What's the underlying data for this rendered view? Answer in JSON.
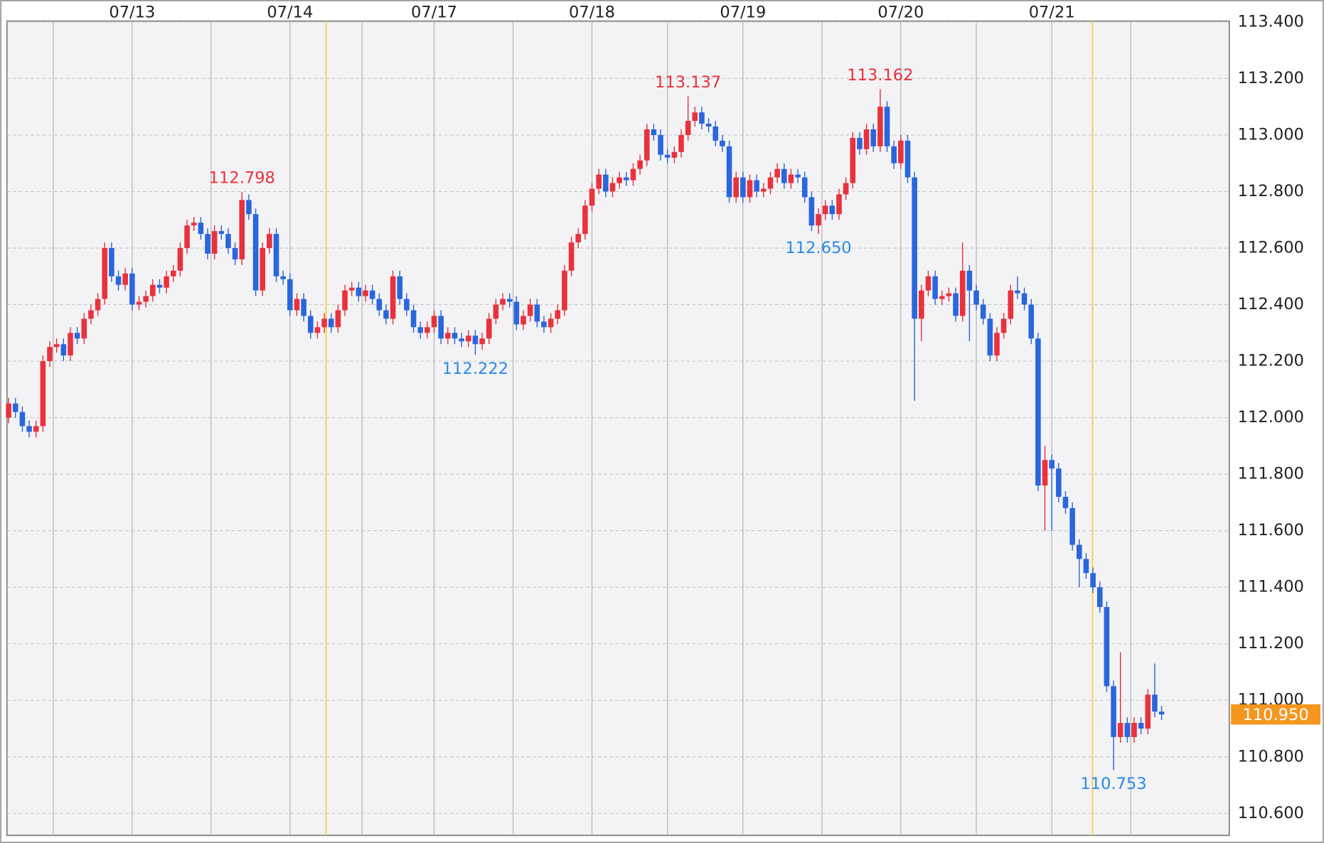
{
  "chart_data": {
    "type": "candlestick",
    "up_color": "#e8323c",
    "down_color": "#2a66dc",
    "grid": true,
    "ylim": [
      110.522,
      113.403
    ],
    "yticks": [
      {
        "value": 110.6,
        "label": "110.600"
      },
      {
        "value": 110.8,
        "label": "110.800"
      },
      {
        "value": 111.0,
        "label": "111.000"
      },
      {
        "value": 111.2,
        "label": "111.200"
      },
      {
        "value": 111.4,
        "label": "111.400"
      },
      {
        "value": 111.6,
        "label": "111.600"
      },
      {
        "value": 111.8,
        "label": "111.800"
      },
      {
        "value": 112.0,
        "label": "112.000"
      },
      {
        "value": 112.2,
        "label": "112.200"
      },
      {
        "value": 112.4,
        "label": "112.400"
      },
      {
        "value": 112.6,
        "label": "112.600"
      },
      {
        "value": 112.8,
        "label": "112.800"
      },
      {
        "value": 113.0,
        "label": "113.000"
      },
      {
        "value": 113.2,
        "label": "113.200"
      },
      {
        "value": 113.4,
        "label": "113.400"
      }
    ],
    "categories": [
      null,
      null,
      null,
      null,
      null,
      null,
      null,
      null,
      null,
      null,
      null,
      null,
      null,
      null,
      null,
      null,
      null,
      null,
      "07/13",
      null,
      null,
      null,
      null,
      null,
      null,
      null,
      null,
      null,
      null,
      null,
      null,
      null,
      null,
      null,
      null,
      null,
      null,
      null,
      null,
      null,
      null,
      "07/14",
      null,
      null,
      null,
      null,
      null,
      null,
      null,
      null,
      null,
      null,
      null,
      null,
      null,
      null,
      null,
      null,
      null,
      null,
      null,
      null,
      "07/17",
      null,
      null,
      null,
      null,
      null,
      null,
      null,
      null,
      null,
      null,
      null,
      null,
      null,
      null,
      null,
      null,
      null,
      null,
      null,
      null,
      null,
      null,
      "07/18",
      null,
      null,
      null,
      null,
      null,
      null,
      null,
      null,
      null,
      null,
      null,
      null,
      null,
      null,
      null,
      null,
      null,
      null,
      null,
      null,
      null,
      "07/19",
      null,
      null,
      null,
      null,
      null,
      null,
      null,
      null,
      null,
      null,
      null,
      null,
      null,
      null,
      null,
      null,
      null,
      null,
      null,
      null,
      null,
      null,
      "07/20",
      null,
      null,
      null,
      null,
      null,
      null,
      null,
      null,
      null,
      null,
      null,
      null,
      null,
      null,
      null,
      null,
      null,
      null,
      null,
      null,
      null,
      "07/21",
      null,
      null,
      null,
      null,
      null,
      null,
      null,
      null,
      null,
      null,
      null,
      null,
      null,
      null,
      null,
      null
    ],
    "open": [
      112.0,
      112.05,
      112.02,
      111.97,
      111.95,
      111.97,
      112.2,
      112.25,
      112.26,
      112.22,
      112.3,
      112.28,
      112.35,
      112.38,
      112.42,
      112.6,
      112.5,
      112.47,
      112.51,
      112.4,
      112.41,
      112.43,
      112.47,
      112.46,
      112.5,
      112.52,
      112.6,
      112.68,
      112.69,
      112.65,
      112.58,
      112.66,
      112.65,
      112.6,
      112.56,
      112.77,
      112.72,
      112.45,
      112.6,
      112.65,
      112.5,
      112.49,
      112.38,
      112.42,
      112.36,
      112.3,
      112.32,
      112.35,
      112.32,
      112.38,
      112.45,
      112.46,
      112.43,
      112.45,
      112.42,
      112.38,
      112.35,
      112.5,
      112.42,
      112.38,
      112.32,
      112.3,
      112.32,
      112.36,
      112.28,
      112.3,
      112.28,
      112.27,
      112.29,
      112.26,
      112.28,
      112.35,
      112.4,
      112.42,
      112.41,
      112.33,
      112.36,
      112.4,
      112.34,
      112.32,
      112.35,
      112.38,
      112.52,
      112.62,
      112.65,
      112.75,
      112.81,
      112.86,
      112.8,
      112.83,
      112.85,
      112.84,
      112.88,
      112.91,
      113.02,
      113.0,
      112.93,
      112.92,
      112.94,
      113.0,
      113.05,
      113.08,
      113.04,
      113.03,
      112.98,
      112.96,
      112.78,
      112.85,
      112.78,
      112.84,
      112.8,
      112.81,
      112.85,
      112.88,
      112.83,
      112.86,
      112.85,
      112.78,
      112.68,
      112.72,
      112.75,
      112.72,
      112.79,
      112.83,
      112.99,
      112.95,
      113.02,
      112.96,
      113.1,
      112.96,
      112.9,
      112.98,
      112.85,
      112.35,
      112.45,
      112.5,
      112.42,
      112.43,
      112.44,
      112.36,
      112.52,
      112.45,
      112.4,
      112.35,
      112.22,
      112.3,
      112.35,
      112.45,
      112.44,
      112.4,
      112.28,
      111.76,
      111.85,
      111.82,
      111.72,
      111.68,
      111.55,
      111.5,
      111.45,
      111.4,
      111.33,
      111.05,
      110.87,
      110.92,
      110.87,
      110.92,
      110.9,
      111.02,
      110.96
    ],
    "high": [
      112.07,
      112.07,
      112.04,
      111.99,
      111.99,
      112.22,
      112.27,
      112.28,
      112.28,
      112.32,
      112.32,
      112.37,
      112.4,
      112.44,
      112.62,
      112.62,
      112.52,
      112.53,
      112.53,
      112.43,
      112.45,
      112.49,
      112.49,
      112.52,
      112.54,
      112.62,
      112.7,
      112.71,
      112.71,
      112.67,
      112.68,
      112.68,
      112.67,
      112.62,
      112.798,
      112.79,
      112.74,
      112.62,
      112.67,
      112.67,
      112.52,
      112.51,
      112.44,
      112.44,
      112.38,
      112.34,
      112.37,
      112.37,
      112.4,
      112.47,
      112.48,
      112.48,
      112.47,
      112.47,
      112.44,
      112.4,
      112.52,
      112.52,
      112.44,
      112.4,
      112.34,
      112.34,
      112.38,
      112.38,
      112.32,
      112.32,
      112.3,
      112.31,
      112.31,
      112.3,
      112.37,
      112.42,
      112.44,
      112.44,
      112.43,
      112.38,
      112.42,
      112.42,
      112.36,
      112.37,
      112.4,
      112.54,
      112.64,
      112.67,
      112.77,
      112.83,
      112.88,
      112.88,
      112.85,
      112.87,
      112.87,
      112.9,
      112.93,
      113.04,
      113.04,
      113.02,
      112.95,
      112.96,
      113.02,
      113.137,
      113.1,
      113.1,
      113.06,
      113.05,
      113.0,
      112.98,
      112.87,
      112.87,
      112.86,
      112.86,
      112.83,
      112.87,
      112.9,
      112.9,
      112.88,
      112.88,
      112.87,
      112.8,
      112.74,
      112.77,
      112.77,
      112.81,
      112.85,
      113.01,
      113.01,
      113.04,
      113.04,
      113.162,
      113.12,
      112.98,
      113.0,
      113.0,
      112.87,
      112.47,
      112.52,
      112.52,
      112.45,
      112.46,
      112.46,
      112.62,
      112.54,
      112.47,
      112.42,
      112.37,
      112.32,
      112.37,
      112.47,
      112.5,
      112.46,
      112.42,
      112.3,
      111.9,
      111.87,
      111.84,
      111.74,
      111.7,
      111.57,
      111.52,
      111.47,
      111.42,
      111.35,
      111.07,
      111.17,
      110.94,
      110.94,
      110.94,
      111.04,
      111.13,
      110.98
    ],
    "low": [
      111.98,
      112.0,
      111.95,
      111.93,
      111.93,
      111.95,
      112.18,
      112.23,
      112.2,
      112.2,
      112.26,
      112.26,
      112.33,
      112.36,
      112.4,
      112.48,
      112.45,
      112.45,
      112.38,
      112.38,
      112.39,
      112.41,
      112.44,
      112.44,
      112.48,
      112.5,
      112.58,
      112.66,
      112.63,
      112.56,
      112.56,
      112.63,
      112.58,
      112.54,
      112.54,
      112.7,
      112.43,
      112.43,
      112.58,
      112.48,
      112.47,
      112.36,
      112.36,
      112.34,
      112.28,
      112.28,
      112.3,
      112.3,
      112.3,
      112.36,
      112.43,
      112.41,
      112.41,
      112.4,
      112.36,
      112.33,
      112.33,
      112.4,
      112.36,
      112.3,
      112.28,
      112.28,
      112.3,
      112.26,
      112.26,
      112.26,
      112.25,
      112.25,
      112.222,
      112.24,
      112.26,
      112.33,
      112.38,
      112.39,
      112.31,
      112.31,
      112.34,
      112.32,
      112.3,
      112.3,
      112.33,
      112.36,
      112.5,
      112.6,
      112.63,
      112.73,
      112.79,
      112.78,
      112.78,
      112.81,
      112.82,
      112.82,
      112.86,
      112.89,
      112.98,
      112.91,
      112.9,
      112.9,
      112.92,
      112.98,
      113.03,
      113.02,
      113.01,
      112.96,
      112.94,
      112.76,
      112.76,
      112.76,
      112.76,
      112.78,
      112.78,
      112.79,
      112.83,
      112.81,
      112.81,
      112.83,
      112.76,
      112.66,
      112.65,
      112.7,
      112.7,
      112.7,
      112.77,
      112.81,
      112.93,
      112.93,
      112.94,
      112.94,
      112.94,
      112.88,
      112.88,
      112.83,
      112.06,
      112.27,
      112.43,
      112.4,
      112.4,
      112.41,
      112.34,
      112.34,
      112.27,
      112.38,
      112.33,
      112.2,
      112.2,
      112.28,
      112.33,
      112.42,
      112.38,
      112.26,
      111.74,
      111.6,
      111.6,
      111.7,
      111.66,
      111.53,
      111.4,
      111.43,
      111.38,
      111.31,
      111.03,
      110.753,
      110.85,
      110.85,
      110.85,
      110.88,
      110.88,
      110.94,
      110.93
    ],
    "close": [
      112.05,
      112.02,
      111.97,
      111.95,
      111.97,
      112.2,
      112.25,
      112.26,
      112.22,
      112.3,
      112.28,
      112.35,
      112.38,
      112.42,
      112.6,
      112.5,
      112.47,
      112.51,
      112.4,
      112.41,
      112.43,
      112.47,
      112.46,
      112.5,
      112.52,
      112.6,
      112.68,
      112.69,
      112.65,
      112.58,
      112.66,
      112.65,
      112.6,
      112.56,
      112.77,
      112.72,
      112.45,
      112.6,
      112.65,
      112.5,
      112.49,
      112.38,
      112.42,
      112.36,
      112.3,
      112.32,
      112.35,
      112.32,
      112.38,
      112.45,
      112.46,
      112.43,
      112.45,
      112.42,
      112.38,
      112.35,
      112.5,
      112.42,
      112.38,
      112.32,
      112.3,
      112.32,
      112.36,
      112.28,
      112.3,
      112.28,
      112.27,
      112.29,
      112.26,
      112.28,
      112.35,
      112.4,
      112.42,
      112.41,
      112.33,
      112.36,
      112.4,
      112.34,
      112.32,
      112.35,
      112.38,
      112.52,
      112.62,
      112.65,
      112.75,
      112.81,
      112.86,
      112.8,
      112.83,
      112.85,
      112.84,
      112.88,
      112.91,
      113.02,
      113.0,
      112.93,
      112.92,
      112.94,
      113.0,
      113.05,
      113.08,
      113.04,
      113.03,
      112.98,
      112.96,
      112.78,
      112.85,
      112.78,
      112.84,
      112.8,
      112.81,
      112.85,
      112.88,
      112.83,
      112.86,
      112.85,
      112.78,
      112.68,
      112.72,
      112.75,
      112.72,
      112.79,
      112.83,
      112.99,
      112.95,
      113.02,
      112.96,
      113.1,
      112.96,
      112.9,
      112.98,
      112.85,
      112.35,
      112.45,
      112.5,
      112.42,
      112.43,
      112.44,
      112.36,
      112.52,
      112.45,
      112.4,
      112.35,
      112.22,
      112.3,
      112.35,
      112.45,
      112.44,
      112.4,
      112.28,
      111.76,
      111.85,
      111.82,
      111.72,
      111.68,
      111.55,
      111.5,
      111.45,
      111.4,
      111.33,
      111.05,
      110.87,
      110.92,
      110.87,
      110.92,
      110.9,
      111.02,
      110.96,
      110.95
    ],
    "high_labels": [
      {
        "value": 112.798,
        "label": "112.798"
      },
      {
        "value": 113.137,
        "label": "113.137"
      },
      {
        "value": 113.162,
        "label": "113.162"
      }
    ],
    "low_labels": [
      {
        "value": 112.222,
        "label": "112.222"
      },
      {
        "value": 112.65,
        "label": "112.650"
      },
      {
        "value": 110.753,
        "label": "110.753"
      }
    ],
    "last_price": {
      "value": 110.95,
      "label": "110.950"
    },
    "last_price_color": "#f5961e"
  }
}
